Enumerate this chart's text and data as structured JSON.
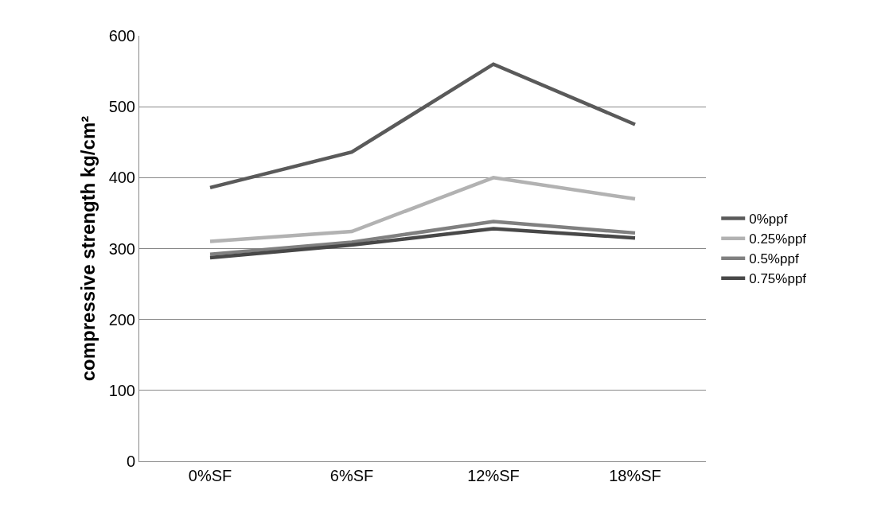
{
  "chart_data": {
    "type": "line",
    "ylabel": "compressive strength kg/cm²",
    "categories": [
      "0%SF",
      "6%SF",
      "12%SF",
      "18%SF"
    ],
    "series": [
      {
        "name": "0%ppf",
        "color": "#5a5a5a",
        "values": [
          386,
          436,
          560,
          475
        ]
      },
      {
        "name": "0.25%ppf",
        "color": "#b2b2b2",
        "values": [
          310,
          324,
          400,
          370
        ]
      },
      {
        "name": "0.5%ppf",
        "color": "#808080",
        "values": [
          292,
          309,
          338,
          322
        ]
      },
      {
        "name": "0.75%ppf",
        "color": "#484848",
        "values": [
          287,
          305,
          328,
          315
        ]
      }
    ],
    "ylim": [
      0,
      600
    ],
    "yticks": [
      0,
      100,
      200,
      300,
      400,
      500,
      600
    ],
    "grid": "y",
    "legend": "right",
    "marker": "none",
    "line_style": "solid"
  }
}
